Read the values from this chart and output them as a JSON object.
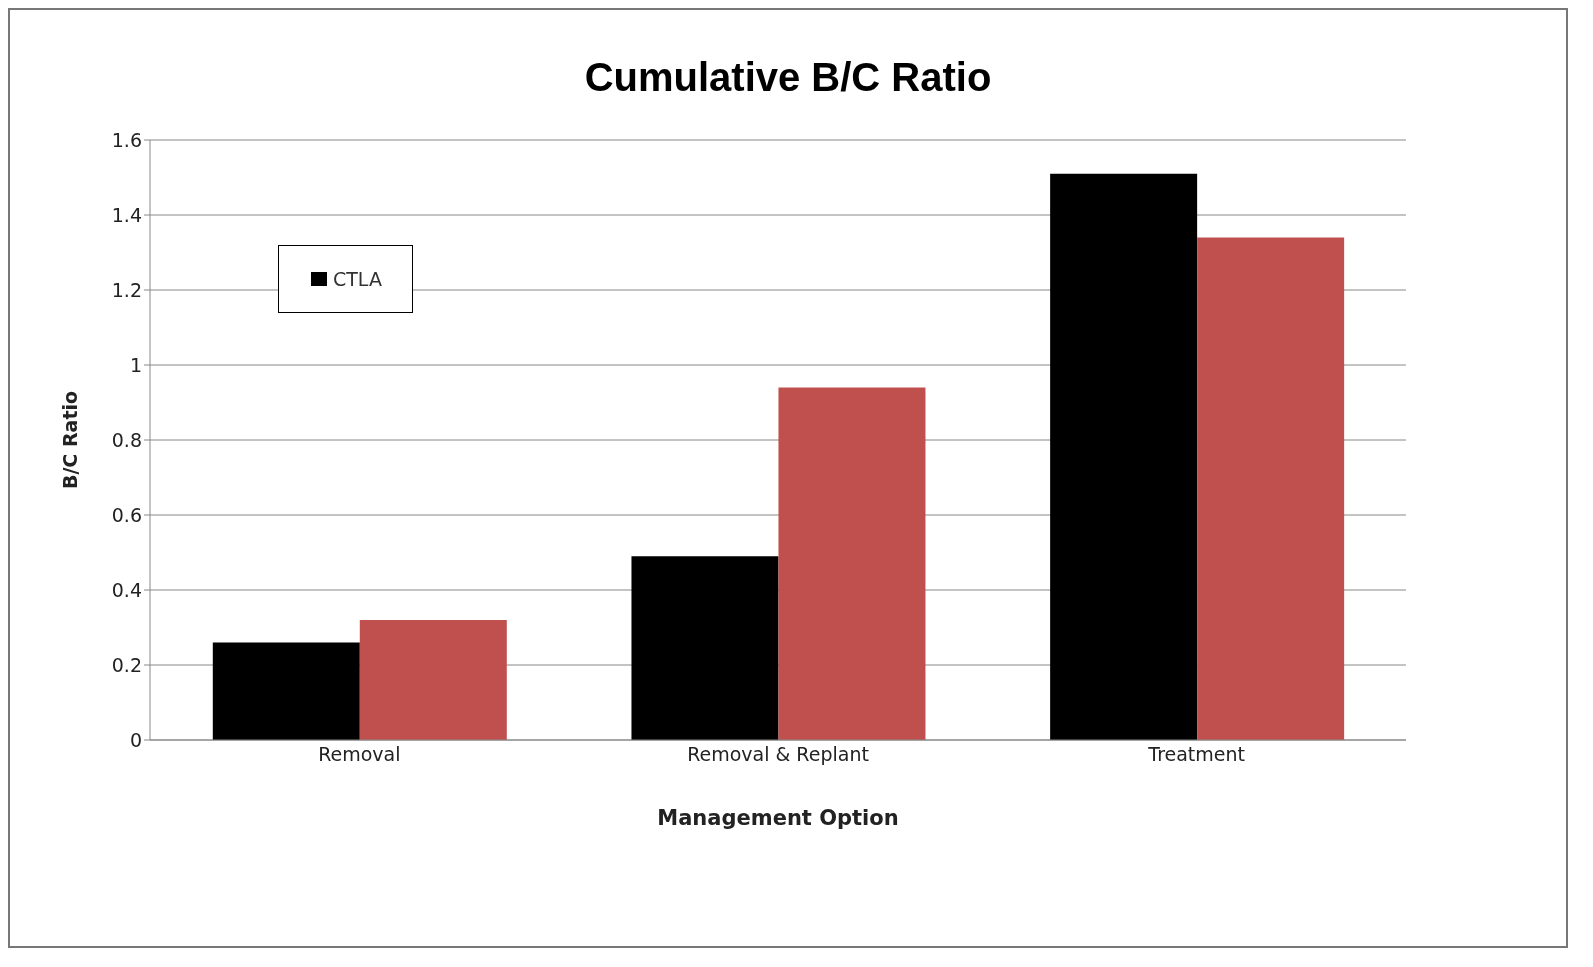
{
  "chart_data": {
    "type": "bar",
    "title": "Cumulative B/C Ratio",
    "xlabel": "Management Option",
    "ylabel": "B/C Ratio",
    "categories": [
      "Removal",
      "Removal & Replant",
      "Treatment"
    ],
    "series": [
      {
        "name": "CTLA",
        "color": "#000000",
        "values": [
          0.26,
          0.49,
          1.51
        ]
      },
      {
        "color": "#c0504d",
        "values": [
          0.32,
          0.94,
          1.34
        ]
      }
    ],
    "ylim": [
      0,
      1.6
    ],
    "yticks": [
      0,
      0.2,
      0.4,
      0.6,
      0.8,
      1,
      1.2,
      1.4,
      1.6
    ],
    "grid": "y",
    "legend": "top left"
  }
}
